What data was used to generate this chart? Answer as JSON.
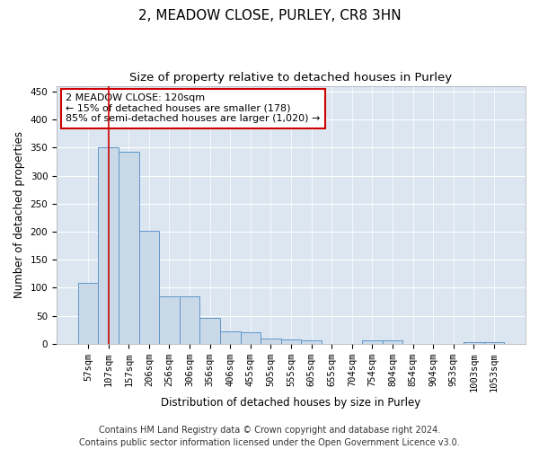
{
  "title": "2, MEADOW CLOSE, PURLEY, CR8 3HN",
  "subtitle": "Size of property relative to detached houses in Purley",
  "xlabel": "Distribution of detached houses by size in Purley",
  "ylabel": "Number of detached properties",
  "footnote": "Contains HM Land Registry data © Crown copyright and database right 2024.\nContains public sector information licensed under the Open Government Licence v3.0.",
  "bar_labels": [
    "57sqm",
    "107sqm",
    "157sqm",
    "206sqm",
    "256sqm",
    "306sqm",
    "356sqm",
    "406sqm",
    "455sqm",
    "505sqm",
    "555sqm",
    "605sqm",
    "655sqm",
    "704sqm",
    "754sqm",
    "804sqm",
    "854sqm",
    "904sqm",
    "953sqm",
    "1003sqm",
    "1053sqm"
  ],
  "bar_values": [
    109,
    350,
    343,
    202,
    84,
    84,
    46,
    22,
    20,
    10,
    8,
    6,
    0,
    0,
    7,
    7,
    0,
    0,
    0,
    3,
    3
  ],
  "bar_color": "#c9d9e8",
  "bar_edge_color": "#6096c8",
  "annotation_box_text": "2 MEADOW CLOSE: 120sqm\n← 15% of detached houses are smaller (178)\n85% of semi-detached houses are larger (1,020) →",
  "vline_color": "#cc0000",
  "vline_x": 1.0,
  "ylim": [
    0,
    460
  ],
  "yticks": [
    0,
    50,
    100,
    150,
    200,
    250,
    300,
    350,
    400,
    450
  ],
  "bg_color": "#dce6f0",
  "fig_bg_color": "#ffffff",
  "title_fontsize": 11,
  "subtitle_fontsize": 9.5,
  "label_fontsize": 8.5,
  "tick_fontsize": 7.5,
  "footnote_fontsize": 7
}
